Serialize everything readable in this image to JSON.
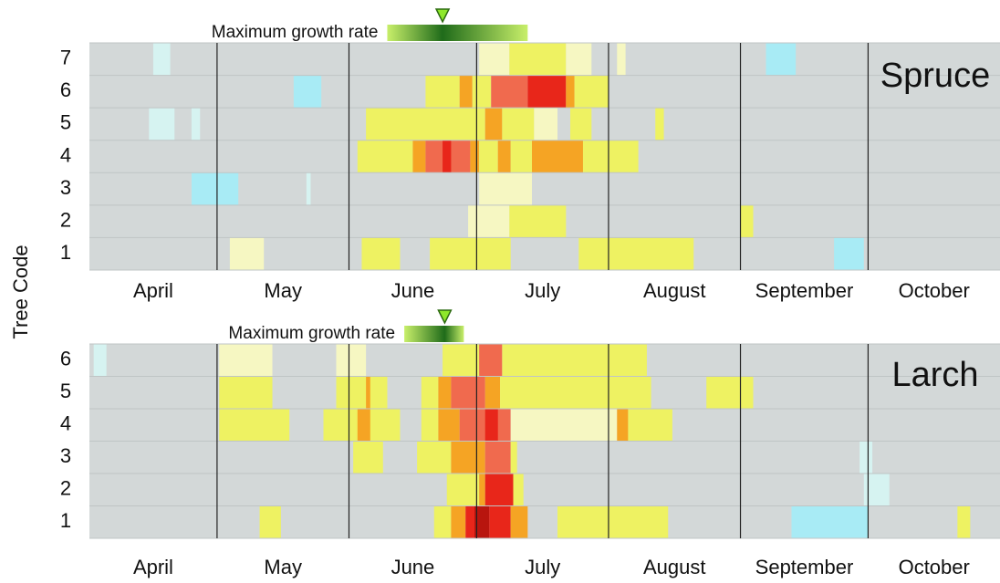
{
  "chart_data": [
    {
      "type": "heatmap",
      "title": "Spruce",
      "ylabel": "Tree Code",
      "months": [
        "April",
        "May",
        "June",
        "July",
        "August",
        "September",
        "October"
      ],
      "month_ends": [
        30,
        61,
        91,
        122,
        153,
        183
      ],
      "xlim": [
        0,
        214
      ],
      "colors": [
        "#d6f3f1",
        "#a8ebf5",
        "#f6f7c2",
        "#eef262",
        "#f5a424",
        "#f06a4e",
        "#e8261a",
        "#b8150e"
      ],
      "annotation": {
        "text": "Maximum growth rate",
        "start": 70,
        "end": 103,
        "peak": 83
      },
      "rows": [
        {
          "label": 7,
          "segments": [
            [
              15,
              19,
              0
            ],
            [
              91.6,
              98.7,
              2
            ],
            [
              98.7,
              112,
              3
            ],
            [
              112,
              118,
              2
            ],
            [
              124,
              126,
              2
            ],
            [
              159,
              166,
              1
            ]
          ]
        },
        {
          "label": 6,
          "segments": [
            [
              48,
              54.5,
              1
            ],
            [
              79,
              87,
              3
            ],
            [
              87,
              90,
              4
            ],
            [
              90,
              94.4,
              3
            ],
            [
              94.4,
              103,
              5
            ],
            [
              103,
              112,
              6
            ],
            [
              112,
              114,
              4
            ],
            [
              114,
              122,
              3
            ]
          ]
        },
        {
          "label": 5,
          "segments": [
            [
              14,
              20,
              0
            ],
            [
              24,
              26,
              0
            ],
            [
              65,
              93,
              3
            ],
            [
              93,
              97,
              4
            ],
            [
              97,
              104.5,
              3
            ],
            [
              104.5,
              110,
              2
            ],
            [
              113,
              118,
              3
            ],
            [
              133,
              135,
              3
            ]
          ]
        },
        {
          "label": 4,
          "segments": [
            [
              63,
              76,
              3
            ],
            [
              76,
              79,
              4
            ],
            [
              79,
              89.5,
              5
            ],
            [
              83,
              85,
              6
            ],
            [
              89.5,
              91.6,
              4
            ],
            [
              91.6,
              96,
              3
            ],
            [
              96,
              99,
              4
            ],
            [
              99,
              104,
              3
            ],
            [
              104,
              116,
              4
            ],
            [
              116,
              129,
              3
            ]
          ]
        },
        {
          "label": 3,
          "segments": [
            [
              24,
              35,
              1
            ],
            [
              51,
              52,
              0
            ],
            [
              91.6,
              104,
              2
            ]
          ]
        },
        {
          "label": 2,
          "segments": [
            [
              89,
              98.7,
              2
            ],
            [
              98.7,
              112,
              3
            ],
            [
              153,
              156,
              3
            ]
          ]
        },
        {
          "label": 1,
          "segments": [
            [
              33,
              41,
              2
            ],
            [
              64,
              73,
              3
            ],
            [
              80,
              99,
              3
            ],
            [
              115,
              142,
              3
            ],
            [
              175,
              182,
              1
            ]
          ]
        }
      ]
    },
    {
      "type": "heatmap",
      "title": "Larch",
      "months": [
        "April",
        "May",
        "June",
        "July",
        "August",
        "September",
        "October"
      ],
      "month_ends": [
        30,
        61,
        91,
        122,
        153,
        183
      ],
      "xlim": [
        0,
        214
      ],
      "colors": [
        "#d6f3f1",
        "#a8ebf5",
        "#f6f7c2",
        "#eef262",
        "#f5a424",
        "#f06a4e",
        "#e8261a",
        "#b8150e"
      ],
      "annotation": {
        "text": "Maximum growth rate",
        "start": 74,
        "end": 88,
        "peak": 83.5
      },
      "rows": [
        {
          "label": 6,
          "segments": [
            [
              1,
              4,
              0
            ],
            [
              30.5,
              43,
              2
            ],
            [
              58,
              65,
              2
            ],
            [
              83,
              91.6,
              3
            ],
            [
              91.6,
              97,
              5
            ],
            [
              97,
              131,
              3
            ]
          ]
        },
        {
          "label": 5,
          "segments": [
            [
              30.5,
              43,
              3
            ],
            [
              58,
              70,
              3
            ],
            [
              65,
              66,
              4
            ],
            [
              78,
              82,
              3
            ],
            [
              82,
              85,
              4
            ],
            [
              85,
              93,
              5
            ],
            [
              93,
              96.5,
              4
            ],
            [
              96.5,
              132,
              3
            ],
            [
              145,
              156,
              3
            ]
          ]
        },
        {
          "label": 4,
          "segments": [
            [
              30.5,
              47,
              3
            ],
            [
              55,
              73,
              3
            ],
            [
              63,
              66,
              4
            ],
            [
              78,
              82,
              3
            ],
            [
              82,
              87,
              4
            ],
            [
              87,
              99,
              5
            ],
            [
              93,
              96,
              6
            ],
            [
              99,
              124,
              2
            ],
            [
              124,
              126.6,
              4
            ],
            [
              126.6,
              137,
              3
            ]
          ]
        },
        {
          "label": 3,
          "segments": [
            [
              62,
              69,
              3
            ],
            [
              77,
              85,
              3
            ],
            [
              85,
              93,
              4
            ],
            [
              93,
              99,
              5
            ],
            [
              99,
              100.5,
              3
            ],
            [
              181,
              184,
              0
            ]
          ]
        },
        {
          "label": 2,
          "segments": [
            [
              84,
              91.6,
              3
            ],
            [
              91.6,
              93,
              4
            ],
            [
              93,
              99.6,
              6
            ],
            [
              99.6,
              102,
              3
            ],
            [
              182,
              188,
              0
            ]
          ]
        },
        {
          "label": 1,
          "segments": [
            [
              40,
              45,
              3
            ],
            [
              81,
              85,
              3
            ],
            [
              85,
              88.4,
              4
            ],
            [
              88.4,
              92.7,
              6
            ],
            [
              90.5,
              94,
              7
            ],
            [
              94,
              99,
              6
            ],
            [
              99,
              103,
              4
            ],
            [
              110,
              136,
              3
            ],
            [
              165,
              183,
              1
            ],
            [
              204,
              207,
              3
            ]
          ]
        }
      ]
    }
  ]
}
